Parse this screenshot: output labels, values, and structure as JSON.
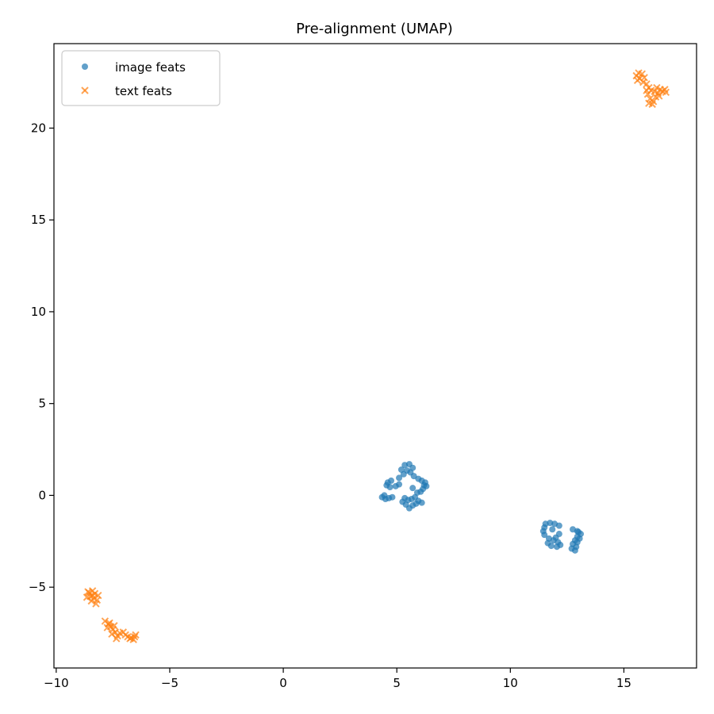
{
  "chart_data": {
    "type": "scatter",
    "title": "Pre-alignment (UMAP)",
    "xlabel": "",
    "ylabel": "",
    "xlim": [
      -10.1,
      18.2
    ],
    "ylim": [
      -9.4,
      24.6
    ],
    "xticks": [
      -10,
      -5,
      0,
      5,
      10,
      15
    ],
    "yticks": [
      -5,
      0,
      5,
      10,
      15,
      20
    ],
    "grid": false,
    "legend_position": "top-left",
    "series": [
      {
        "name": "image feats",
        "marker": "circle",
        "color": "#1f77b4",
        "points": [
          [
            5.35,
            1.65
          ],
          [
            5.55,
            1.7
          ],
          [
            5.7,
            1.5
          ],
          [
            5.2,
            1.4
          ],
          [
            5.45,
            1.35
          ],
          [
            5.6,
            1.25
          ],
          [
            5.3,
            1.15
          ],
          [
            5.75,
            1.05
          ],
          [
            5.1,
            0.95
          ],
          [
            5.95,
            0.9
          ],
          [
            6.1,
            0.8
          ],
          [
            6.25,
            0.7
          ],
          [
            6.3,
            0.5
          ],
          [
            6.15,
            0.35
          ],
          [
            6.05,
            0.2
          ],
          [
            4.75,
            0.8
          ],
          [
            4.6,
            0.7
          ],
          [
            4.55,
            0.55
          ],
          [
            4.7,
            0.45
          ],
          [
            4.95,
            0.5
          ],
          [
            5.1,
            0.6
          ],
          [
            5.7,
            0.4
          ],
          [
            5.9,
            0.15
          ],
          [
            5.8,
            -0.1
          ],
          [
            5.95,
            -0.3
          ],
          [
            6.1,
            -0.4
          ],
          [
            5.7,
            -0.55
          ],
          [
            5.55,
            -0.7
          ],
          [
            5.4,
            -0.5
          ],
          [
            5.25,
            -0.35
          ],
          [
            5.35,
            -0.15
          ],
          [
            5.5,
            -0.25
          ],
          [
            5.65,
            -0.2
          ],
          [
            4.35,
            -0.1
          ],
          [
            4.5,
            -0.2
          ],
          [
            4.65,
            -0.15
          ],
          [
            4.8,
            -0.1
          ],
          [
            4.45,
            0.0
          ],
          [
            5.85,
            -0.45
          ],
          [
            6.2,
            0.55
          ],
          [
            11.55,
            -1.55
          ],
          [
            11.75,
            -1.5
          ],
          [
            11.95,
            -1.55
          ],
          [
            12.15,
            -1.65
          ],
          [
            11.5,
            -1.75
          ],
          [
            11.45,
            -1.95
          ],
          [
            11.5,
            -2.15
          ],
          [
            11.7,
            -2.35
          ],
          [
            11.9,
            -2.45
          ],
          [
            12.1,
            -2.55
          ],
          [
            12.2,
            -2.7
          ],
          [
            12.05,
            -2.8
          ],
          [
            11.8,
            -2.75
          ],
          [
            11.65,
            -2.6
          ],
          [
            12.0,
            -2.3
          ],
          [
            12.15,
            -2.1
          ],
          [
            11.85,
            -1.85
          ],
          [
            12.75,
            -1.85
          ],
          [
            12.95,
            -1.95
          ],
          [
            13.1,
            -2.1
          ],
          [
            13.05,
            -2.35
          ],
          [
            12.95,
            -2.55
          ],
          [
            12.9,
            -2.8
          ],
          [
            12.85,
            -3.0
          ],
          [
            12.7,
            -2.9
          ],
          [
            12.75,
            -2.65
          ],
          [
            12.85,
            -2.45
          ],
          [
            12.95,
            -2.25
          ],
          [
            13.0,
            -2.0
          ]
        ]
      },
      {
        "name": "text feats",
        "marker": "x",
        "color": "#ff7f0e",
        "points": [
          [
            -8.65,
            -5.55
          ],
          [
            -8.55,
            -5.3
          ],
          [
            -8.4,
            -5.2
          ],
          [
            -8.3,
            -5.35
          ],
          [
            -8.5,
            -5.5
          ],
          [
            -8.35,
            -5.6
          ],
          [
            -8.2,
            -5.7
          ],
          [
            -8.45,
            -5.75
          ],
          [
            -8.25,
            -5.9
          ],
          [
            -8.6,
            -5.25
          ],
          [
            -8.15,
            -5.45
          ],
          [
            -8.4,
            -5.45
          ],
          [
            -7.85,
            -6.85
          ],
          [
            -7.7,
            -7.0
          ],
          [
            -7.6,
            -7.15
          ],
          [
            -7.75,
            -7.2
          ],
          [
            -7.5,
            -7.3
          ],
          [
            -7.4,
            -7.45
          ],
          [
            -7.55,
            -7.55
          ],
          [
            -7.3,
            -7.65
          ],
          [
            -7.2,
            -7.5
          ],
          [
            -7.35,
            -7.8
          ],
          [
            -7.05,
            -7.45
          ],
          [
            -6.95,
            -7.6
          ],
          [
            -6.85,
            -7.7
          ],
          [
            -6.7,
            -7.75
          ],
          [
            -6.55,
            -7.7
          ],
          [
            -6.6,
            -7.85
          ],
          [
            -6.75,
            -7.8
          ],
          [
            -6.5,
            -7.6
          ],
          [
            -7.45,
            -7.1
          ],
          [
            -7.65,
            -6.95
          ],
          [
            15.55,
            22.85
          ],
          [
            15.65,
            23.0
          ],
          [
            15.8,
            22.95
          ],
          [
            15.9,
            22.75
          ],
          [
            15.7,
            22.7
          ],
          [
            15.6,
            22.6
          ],
          [
            15.85,
            22.5
          ],
          [
            16.0,
            22.4
          ],
          [
            16.1,
            22.2
          ],
          [
            16.2,
            22.05
          ],
          [
            16.05,
            21.85
          ],
          [
            16.15,
            21.6
          ],
          [
            16.3,
            21.45
          ],
          [
            16.1,
            21.35
          ],
          [
            16.25,
            21.3
          ],
          [
            16.4,
            21.7
          ],
          [
            16.5,
            21.9
          ],
          [
            16.6,
            22.1
          ],
          [
            16.45,
            22.2
          ],
          [
            16.7,
            22.0
          ],
          [
            16.85,
            21.95
          ],
          [
            16.8,
            22.1
          ],
          [
            16.55,
            21.75
          ],
          [
            16.35,
            22.0
          ],
          [
            16.0,
            22.05
          ]
        ]
      }
    ]
  }
}
